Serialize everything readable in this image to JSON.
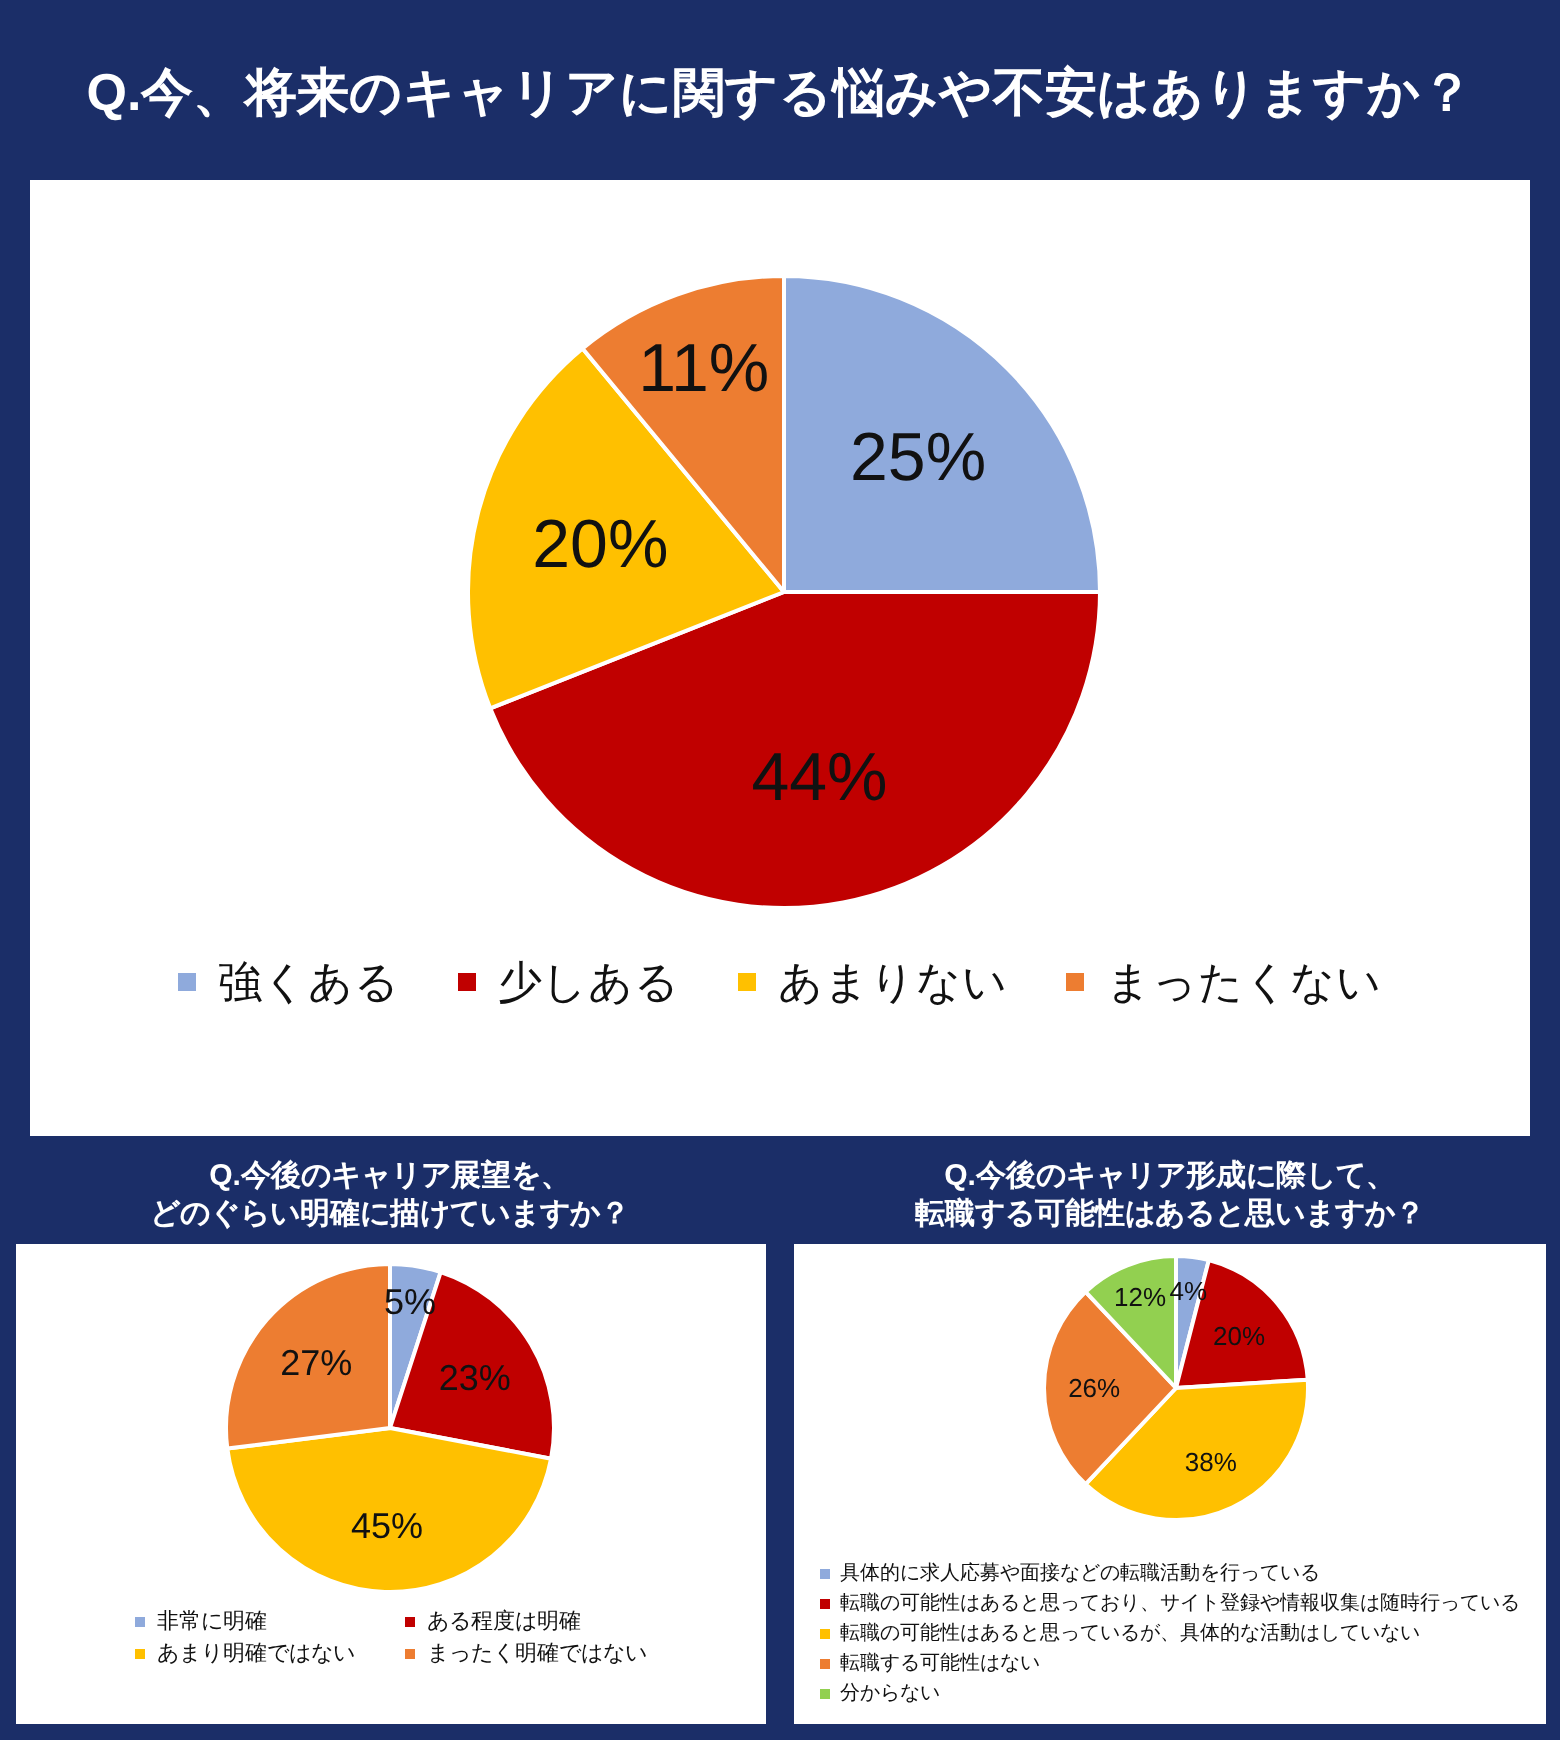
{
  "chart_data": [
    {
      "type": "pie",
      "title": "Q.今、将来のキャリアに関する悩みや不安はありますか？",
      "categories": [
        "強くある",
        "少しある",
        "あまりない",
        "まったくない"
      ],
      "values": [
        25,
        44,
        20,
        11
      ],
      "colors": [
        "#8faadc",
        "#c00000",
        "#ffc000",
        "#ed7d31"
      ],
      "value_labels": [
        "25%",
        "44%",
        "20%",
        "11%"
      ],
      "legend": "bottom"
    },
    {
      "type": "pie",
      "title": "Q.今後のキャリア展望を、どのぐらい明確に描けていますか？",
      "categories": [
        "非常に明確",
        "ある程度は明確",
        "あまり明確ではない",
        "まったく明確ではない"
      ],
      "values": [
        5,
        23,
        45,
        27
      ],
      "colors": [
        "#8faadc",
        "#c00000",
        "#ffc000",
        "#ed7d31"
      ],
      "value_labels": [
        "5%",
        "23%",
        "45%",
        "27%"
      ],
      "legend": "bottom"
    },
    {
      "type": "pie",
      "title": "Q.今後のキャリア形成に際して、転職する可能性はあると思いますか？",
      "categories": [
        "具体的に求人応募や面接などの転職活動を行っている",
        "転職の可能性はあると思っており、サイト登録や情報収集は随時行っている",
        "転職の可能性はあると思っているが、具体的な活動はしていない",
        "転職する可能性はない",
        "分からない"
      ],
      "values": [
        4,
        20,
        38,
        26,
        12
      ],
      "colors": [
        "#8faadc",
        "#c00000",
        "#ffc000",
        "#ed7d31",
        "#92d050"
      ],
      "value_labels": [
        "4%",
        "20%",
        "38%",
        "26%",
        "12%"
      ],
      "legend": "bottom"
    }
  ]
}
